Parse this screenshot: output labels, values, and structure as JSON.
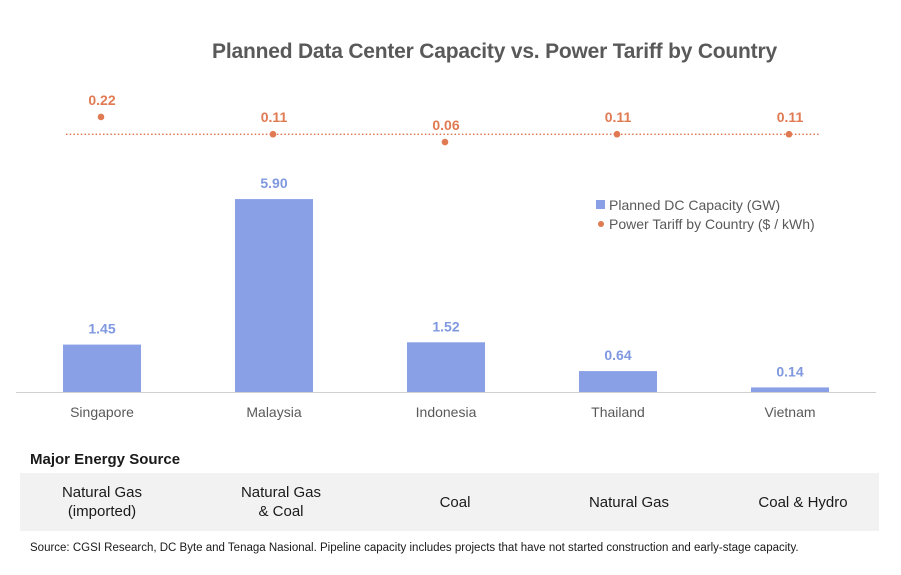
{
  "chart_data": {
    "type": "bar",
    "title": "Planned Data Center Capacity vs. Power Tariff by Country",
    "categories": [
      "Singapore",
      "Malaysia",
      "Indonesia",
      "Thailand",
      "Vietnam"
    ],
    "series": [
      {
        "name": "Planned DC Capacity (GW)",
        "type": "bar",
        "values": [
          1.45,
          5.9,
          1.52,
          0.64,
          0.14
        ],
        "labels": [
          "1.45",
          "5.90",
          "1.52",
          "0.64",
          "0.14"
        ],
        "color": "#8aa0e6"
      },
      {
        "name": "Power Tariff by Country ($ / kWh)",
        "type": "scatter",
        "values": [
          0.22,
          0.11,
          0.06,
          0.11,
          0.11
        ],
        "labels": [
          "0.22",
          "0.11",
          "0.06",
          "0.11",
          "0.11"
        ],
        "color": "#e07a52",
        "reference_line": 0.11
      }
    ],
    "legend_position": "right",
    "grid": false
  },
  "energy_section": {
    "label": "Major Energy Source",
    "sources": [
      "Natural Gas\n(imported)",
      "Natural Gas\n& Coal",
      "Coal",
      "Natural Gas",
      "Coal & Hydro"
    ]
  },
  "source_note": "Source: CGSI Research, DC Byte and Tenaga Nasional. Pipeline capacity includes projects that have not started construction and early-stage capacity."
}
